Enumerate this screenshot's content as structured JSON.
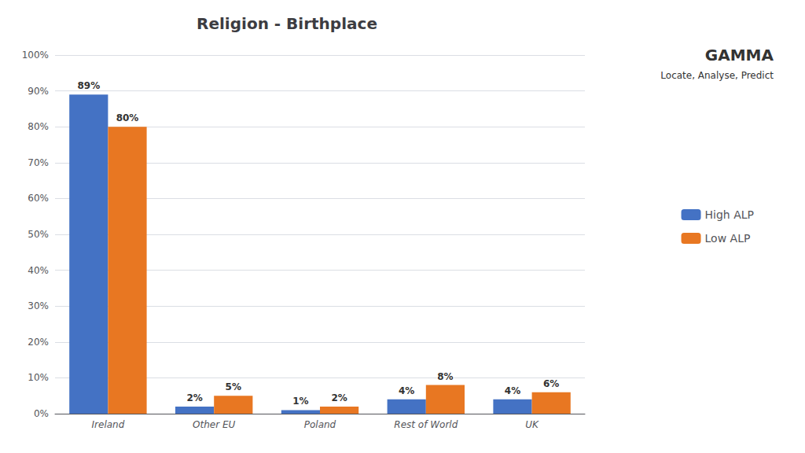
{
  "chart_data": {
    "type": "bar",
    "title": "Religion - Birthplace",
    "categories": [
      "Ireland",
      "Other EU",
      "Poland",
      "Rest of World",
      "UK"
    ],
    "series": [
      {
        "name": "High ALP",
        "color": "#4472C4",
        "values": [
          89,
          2,
          1,
          4,
          4
        ],
        "value_labels": [
          "89%",
          "2%",
          "1%",
          "4%",
          "4%"
        ]
      },
      {
        "name": "Low ALP",
        "color": "#E87722",
        "values": [
          80,
          5,
          2,
          8,
          6
        ],
        "value_labels": [
          "80%",
          "5%",
          "2%",
          "8%",
          "6%"
        ]
      }
    ],
    "ylim": [
      0,
      100
    ],
    "yticks": [
      {
        "value": 0,
        "label": "0%"
      },
      {
        "value": 10,
        "label": "10%"
      },
      {
        "value": 20,
        "label": "20%"
      },
      {
        "value": 30,
        "label": "30%"
      },
      {
        "value": 40,
        "label": "40%"
      },
      {
        "value": 50,
        "label": "50%"
      },
      {
        "value": 60,
        "label": "60%"
      },
      {
        "value": 70,
        "label": "70%"
      },
      {
        "value": 80,
        "label": "80%"
      },
      {
        "value": 90,
        "label": "90%"
      },
      {
        "value": 100,
        "label": "100%"
      }
    ],
    "grid": true,
    "legend": "right",
    "data_labels": true,
    "annotations": [
      "GAMMA",
      "Locate, Analyse, Predict"
    ]
  }
}
